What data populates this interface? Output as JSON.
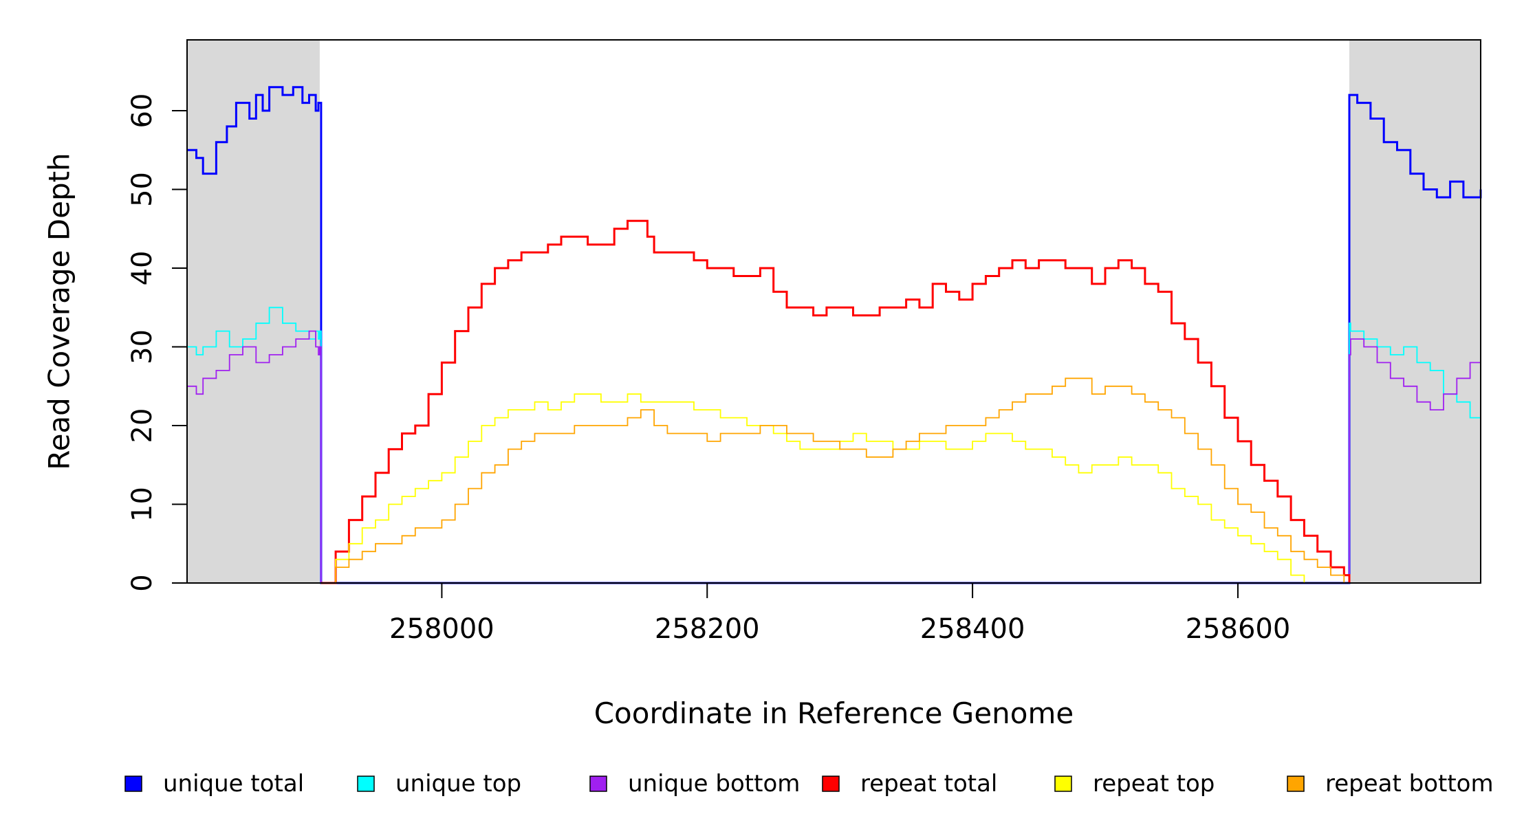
{
  "chart_data": {
    "type": "line",
    "title": "",
    "xlabel": "Coordinate in Reference Genome",
    "ylabel": "Read Coverage Depth",
    "xlim": [
      257808,
      258783
    ],
    "ylim": [
      0,
      69
    ],
    "x_ticks": [
      258000,
      258200,
      258400,
      258600
    ],
    "y_ticks": [
      0,
      10,
      20,
      30,
      40,
      50,
      60
    ],
    "grid": false,
    "legend_position": "bottom",
    "shaded_regions": [
      {
        "from": 257808,
        "to": 257908,
        "color": "#d9d9d9"
      },
      {
        "from": 258684,
        "to": 258783,
        "color": "#d9d9d9"
      }
    ],
    "series": [
      {
        "name": "unique total",
        "color": "#0000ff",
        "x": [
          257808,
          257815,
          257820,
          257830,
          257838,
          257845,
          257855,
          257860,
          257865,
          257870,
          257880,
          257888,
          257895,
          257900,
          257905,
          257907,
          257908,
          257909,
          258683,
          258684,
          258685,
          258690,
          258700,
          258710,
          258720,
          258730,
          258740,
          258750,
          258760,
          258770,
          258783
        ],
        "y": [
          55,
          54,
          52,
          56,
          58,
          61,
          59,
          62,
          60,
          63,
          62,
          63,
          61,
          62,
          60,
          61,
          61,
          0,
          0,
          62,
          62,
          61,
          59,
          56,
          55,
          52,
          50,
          49,
          51,
          49,
          50
        ]
      },
      {
        "name": "unique top",
        "color": "#00ffff",
        "x": [
          257808,
          257815,
          257820,
          257830,
          257840,
          257850,
          257860,
          257870,
          257880,
          257890,
          257900,
          257905,
          257907,
          257908,
          257909,
          258683,
          258684,
          258685,
          258695,
          258705,
          258715,
          258725,
          258735,
          258745,
          258755,
          258765,
          258775,
          258783
        ],
        "y": [
          30,
          29,
          30,
          32,
          30,
          31,
          33,
          35,
          33,
          32,
          31,
          32,
          31,
          32,
          0,
          0,
          33,
          32,
          31,
          30,
          29,
          30,
          28,
          27,
          24,
          23,
          21,
          20
        ]
      },
      {
        "name": "unique bottom",
        "color": "#a020f0",
        "x": [
          257808,
          257815,
          257820,
          257830,
          257840,
          257850,
          257860,
          257870,
          257880,
          257890,
          257900,
          257905,
          257907,
          257908,
          257909,
          258683,
          258684,
          258685,
          258695,
          258705,
          258715,
          258725,
          258735,
          258745,
          258755,
          258765,
          258775,
          258783
        ],
        "y": [
          25,
          24,
          26,
          27,
          29,
          30,
          28,
          29,
          30,
          31,
          32,
          30,
          29,
          30,
          0,
          0,
          29,
          31,
          30,
          28,
          26,
          25,
          23,
          22,
          24,
          26,
          28,
          29
        ]
      },
      {
        "name": "repeat total",
        "color": "#ff0000",
        "x": [
          257909,
          257920,
          257930,
          257940,
          257950,
          257960,
          257970,
          257980,
          257990,
          258000,
          258010,
          258020,
          258030,
          258040,
          258050,
          258060,
          258070,
          258080,
          258090,
          258100,
          258110,
          258120,
          258130,
          258140,
          258148,
          258155,
          258160,
          258170,
          258180,
          258190,
          258200,
          258210,
          258220,
          258230,
          258240,
          258250,
          258260,
          258270,
          258280,
          258290,
          258300,
          258310,
          258320,
          258330,
          258340,
          258350,
          258360,
          258370,
          258380,
          258390,
          258400,
          258410,
          258420,
          258430,
          258440,
          258450,
          258460,
          258470,
          258480,
          258490,
          258500,
          258510,
          258520,
          258530,
          258540,
          258550,
          258560,
          258570,
          258580,
          258590,
          258600,
          258610,
          258620,
          258630,
          258640,
          258650,
          258660,
          258670,
          258680,
          258684
        ],
        "y": [
          0,
          4,
          8,
          11,
          14,
          17,
          19,
          20,
          24,
          28,
          32,
          35,
          38,
          40,
          41,
          42,
          42,
          43,
          44,
          44,
          43,
          43,
          45,
          46,
          46,
          44,
          42,
          42,
          42,
          41,
          40,
          40,
          39,
          39,
          40,
          37,
          35,
          35,
          34,
          35,
          35,
          34,
          34,
          35,
          35,
          36,
          35,
          38,
          37,
          36,
          38,
          39,
          40,
          41,
          40,
          41,
          41,
          40,
          40,
          38,
          40,
          41,
          40,
          38,
          37,
          33,
          31,
          28,
          25,
          21,
          18,
          15,
          13,
          11,
          8,
          6,
          4,
          2,
          1,
          0
        ]
      },
      {
        "name": "repeat top",
        "color": "#ffff00",
        "x": [
          257909,
          257920,
          257930,
          257940,
          257950,
          257960,
          257970,
          257980,
          257990,
          258000,
          258010,
          258020,
          258030,
          258040,
          258050,
          258060,
          258070,
          258080,
          258090,
          258100,
          258110,
          258120,
          258130,
          258140,
          258150,
          258160,
          258170,
          258180,
          258190,
          258200,
          258210,
          258220,
          258230,
          258240,
          258250,
          258260,
          258270,
          258280,
          258290,
          258300,
          258310,
          258320,
          258330,
          258340,
          258350,
          258360,
          258370,
          258380,
          258390,
          258400,
          258410,
          258420,
          258430,
          258440,
          258450,
          258460,
          258470,
          258480,
          258490,
          258500,
          258510,
          258520,
          258530,
          258540,
          258550,
          258560,
          258570,
          258580,
          258590,
          258600,
          258610,
          258620,
          258630,
          258640,
          258650,
          258660,
          258670,
          258680,
          258684
        ],
        "y": [
          0,
          3,
          5,
          7,
          8,
          10,
          11,
          12,
          13,
          14,
          16,
          18,
          20,
          21,
          22,
          22,
          23,
          22,
          23,
          24,
          24,
          23,
          23,
          24,
          23,
          23,
          23,
          23,
          22,
          22,
          21,
          21,
          20,
          20,
          19,
          18,
          17,
          17,
          17,
          18,
          19,
          18,
          18,
          17,
          17,
          18,
          18,
          17,
          17,
          18,
          19,
          19,
          18,
          17,
          17,
          16,
          15,
          14,
          15,
          15,
          16,
          15,
          15,
          14,
          12,
          11,
          10,
          8,
          7,
          6,
          5,
          4,
          3,
          1,
          0,
          0,
          0,
          0,
          0
        ]
      },
      {
        "name": "repeat bottom",
        "color": "#ffa500",
        "x": [
          257909,
          257920,
          257930,
          257940,
          257950,
          257960,
          257970,
          257980,
          257990,
          258000,
          258010,
          258020,
          258030,
          258040,
          258050,
          258060,
          258070,
          258080,
          258090,
          258100,
          258110,
          258120,
          258130,
          258140,
          258150,
          258160,
          258170,
          258180,
          258190,
          258200,
          258210,
          258220,
          258230,
          258240,
          258250,
          258260,
          258270,
          258280,
          258290,
          258300,
          258310,
          258320,
          258330,
          258340,
          258350,
          258360,
          258370,
          258380,
          258390,
          258400,
          258410,
          258420,
          258430,
          258440,
          258450,
          258460,
          258470,
          258480,
          258490,
          258500,
          258510,
          258520,
          258530,
          258540,
          258550,
          258560,
          258570,
          258580,
          258590,
          258600,
          258610,
          258620,
          258630,
          258640,
          258650,
          258660,
          258670,
          258680,
          258684
        ],
        "y": [
          0,
          2,
          3,
          4,
          5,
          5,
          6,
          7,
          7,
          8,
          10,
          12,
          14,
          15,
          17,
          18,
          19,
          19,
          19,
          20,
          20,
          20,
          20,
          21,
          22,
          20,
          19,
          19,
          19,
          18,
          19,
          19,
          19,
          20,
          20,
          19,
          19,
          18,
          18,
          17,
          17,
          16,
          16,
          17,
          18,
          19,
          19,
          20,
          20,
          20,
          21,
          22,
          23,
          24,
          24,
          25,
          26,
          26,
          24,
          25,
          25,
          24,
          23,
          22,
          21,
          19,
          17,
          15,
          12,
          10,
          9,
          7,
          6,
          4,
          3,
          2,
          1,
          0,
          0
        ]
      }
    ]
  }
}
